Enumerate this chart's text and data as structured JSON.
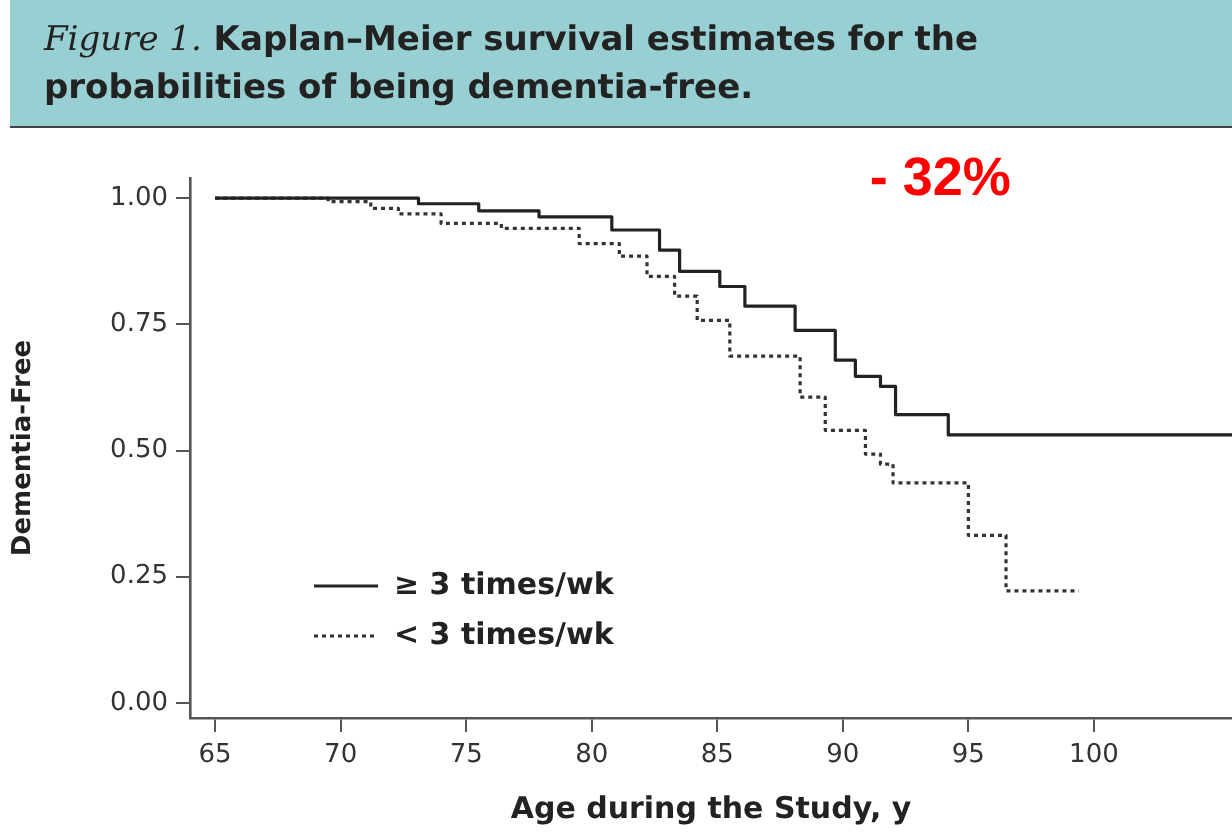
{
  "chart_data": {
    "type": "step",
    "title": "Figure 1. Kaplan–Meier survival estimates for the probabilities of being dementia-free.",
    "xlabel": "Age during the Study, y",
    "ylabel": "Dementia-Free",
    "annotations": [
      "- 32%"
    ],
    "xlim": [
      64,
      105.5
    ],
    "ylim": [
      -0.03,
      1.04
    ],
    "xticks": [
      65,
      70,
      75,
      80,
      85,
      90,
      95,
      100
    ],
    "yticks": [
      {
        "value": 0,
        "label": "0.00"
      },
      {
        "value": 0.25,
        "label": "0.25"
      },
      {
        "value": 0.5,
        "label": "0.50"
      },
      {
        "value": 0.75,
        "label": "0.75"
      },
      {
        "value": 1,
        "label": "1.00"
      }
    ],
    "grid": false,
    "legend": "bottom left",
    "marker": "none",
    "series": [
      {
        "name": "≥ 3 times/wk",
        "color": "#222222",
        "line_style": "solid",
        "x": [
          65,
          72.2,
          73.1,
          75.5,
          77.9,
          80.8,
          82.7,
          83.5,
          85.1,
          86.1,
          88.1,
          89.7,
          90.5,
          91.5,
          92.1,
          94.2,
          105.5
        ],
        "values": [
          1,
          1,
          0.989,
          0.975,
          0.963,
          0.937,
          0.897,
          0.855,
          0.825,
          0.786,
          0.738,
          0.679,
          0.647,
          0.627,
          0.571,
          0.531,
          0.531
        ]
      },
      {
        "name": "< 3 times/wk",
        "color": "#333333",
        "line_style": "dotted",
        "x": [
          65,
          69.5,
          71.2,
          72.3,
          74.0,
          76.4,
          78.1,
          79.5,
          81.1,
          82.2,
          83.3,
          84.2,
          85.5,
          88.3,
          89.3,
          90.9,
          91.5,
          92.0,
          95.0,
          96.5,
          99.4
        ],
        "values": [
          1,
          0.993,
          0.98,
          0.969,
          0.95,
          0.94,
          0.94,
          0.91,
          0.885,
          0.845,
          0.806,
          0.758,
          0.687,
          0.606,
          0.54,
          0.493,
          0.473,
          0.436,
          0.332,
          0.222,
          0.222
        ]
      }
    ]
  }
}
